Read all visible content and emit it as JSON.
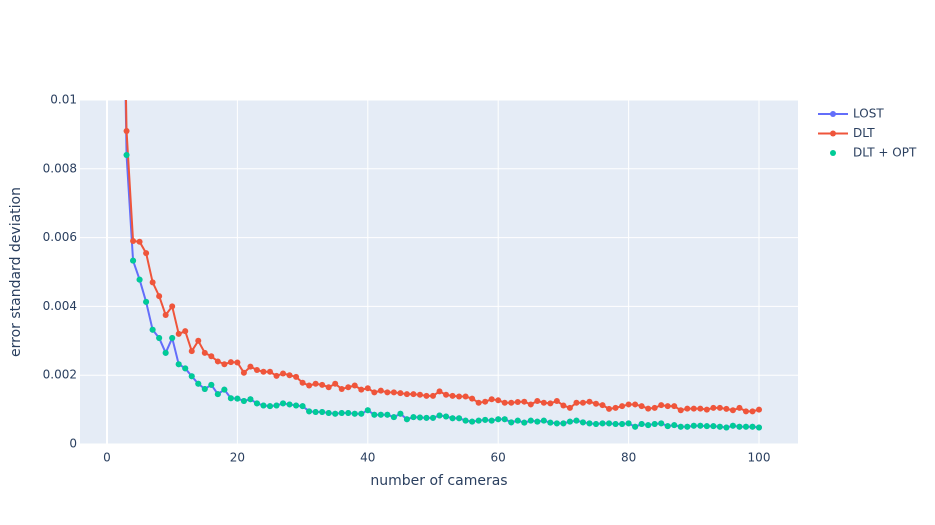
{
  "chart_data": {
    "type": "line",
    "x_label": "number of cameras",
    "y_label": "error standard deviation",
    "x": [
      2,
      3,
      4,
      5,
      6,
      7,
      8,
      9,
      10,
      11,
      12,
      13,
      14,
      15,
      16,
      17,
      18,
      19,
      20,
      21,
      22,
      23,
      24,
      25,
      26,
      27,
      28,
      29,
      30,
      31,
      32,
      33,
      34,
      35,
      36,
      37,
      38,
      39,
      40,
      41,
      42,
      43,
      44,
      45,
      46,
      47,
      48,
      49,
      50,
      51,
      52,
      53,
      54,
      55,
      56,
      57,
      58,
      59,
      60,
      61,
      62,
      63,
      64,
      65,
      66,
      67,
      68,
      69,
      70,
      71,
      72,
      73,
      74,
      75,
      76,
      77,
      78,
      79,
      80,
      81,
      82,
      83,
      84,
      85,
      86,
      87,
      88,
      89,
      90,
      91,
      92,
      93,
      94,
      95,
      96,
      97,
      98,
      99,
      100
    ],
    "series": [
      {
        "name": "LOST",
        "color": "#636efa",
        "mode": "lines+markers",
        "values": [
          0.02,
          0.0084,
          0.00533,
          0.00478,
          0.00413,
          0.00332,
          0.00308,
          0.00265,
          0.00308,
          0.00232,
          0.0022,
          0.00197,
          0.00175,
          0.0016,
          0.00172,
          0.00145,
          0.00158,
          0.00133,
          0.00132,
          0.00125,
          0.0013,
          0.00118,
          0.00112,
          0.0011,
          0.00112,
          0.00118,
          0.00115,
          0.00112,
          0.0011,
          0.00095,
          0.00093,
          0.00093,
          0.0009,
          0.00088,
          0.0009,
          0.0009,
          0.00088,
          0.00088,
          0.00098,
          0.00085,
          0.00085,
          0.00085,
          0.00078,
          0.00088,
          0.00072,
          0.00078,
          0.00077,
          0.00076,
          0.00076,
          0.00083,
          0.0008,
          0.00075,
          0.00075,
          0.00068,
          0.00065,
          0.00068,
          0.0007,
          0.00068,
          0.00072,
          0.00072,
          0.00063,
          0.00068,
          0.00062,
          0.00068,
          0.00065,
          0.00068,
          0.00062,
          0.0006,
          0.0006,
          0.00065,
          0.00068,
          0.00063,
          0.0006,
          0.00058,
          0.0006,
          0.0006,
          0.00058,
          0.00058,
          0.0006,
          0.0005,
          0.00058,
          0.00055,
          0.00058,
          0.0006,
          0.00052,
          0.00055,
          0.0005,
          0.0005,
          0.00053,
          0.00053,
          0.00052,
          0.00052,
          0.0005,
          0.00048,
          0.00053,
          0.0005,
          0.0005,
          0.0005,
          0.00048
        ]
      },
      {
        "name": "DLT",
        "color": "#ef553b",
        "mode": "lines+markers",
        "values": [
          0.02,
          0.0091,
          0.0059,
          0.00588,
          0.00555,
          0.0047,
          0.0043,
          0.00375,
          0.004,
          0.0032,
          0.00328,
          0.0027,
          0.003,
          0.00265,
          0.00255,
          0.0024,
          0.00232,
          0.00238,
          0.00237,
          0.00207,
          0.00225,
          0.00215,
          0.0021,
          0.0021,
          0.00198,
          0.00205,
          0.002,
          0.00195,
          0.00178,
          0.0017,
          0.00175,
          0.00172,
          0.00165,
          0.00175,
          0.0016,
          0.00165,
          0.0017,
          0.00158,
          0.00162,
          0.0015,
          0.00155,
          0.0015,
          0.0015,
          0.00148,
          0.00145,
          0.00145,
          0.00143,
          0.0014,
          0.0014,
          0.00153,
          0.00143,
          0.0014,
          0.00138,
          0.00138,
          0.00132,
          0.0012,
          0.00123,
          0.0013,
          0.00127,
          0.0012,
          0.0012,
          0.00122,
          0.00123,
          0.00115,
          0.00125,
          0.0012,
          0.00118,
          0.00125,
          0.00112,
          0.00105,
          0.0012,
          0.0012,
          0.00123,
          0.00117,
          0.00113,
          0.00102,
          0.00105,
          0.0011,
          0.00115,
          0.00115,
          0.0011,
          0.00103,
          0.00105,
          0.00113,
          0.0011,
          0.0011,
          0.00098,
          0.00103,
          0.00103,
          0.00103,
          0.001,
          0.00105,
          0.00105,
          0.00102,
          0.00098,
          0.00105,
          0.00095,
          0.00095,
          0.001
        ]
      },
      {
        "name": "DLT + OPT",
        "color": "#00cc96",
        "mode": "markers",
        "values": [
          0.018,
          0.0084,
          0.00533,
          0.00478,
          0.00413,
          0.00332,
          0.00308,
          0.00265,
          0.00308,
          0.00232,
          0.0022,
          0.00197,
          0.00175,
          0.0016,
          0.00172,
          0.00145,
          0.00158,
          0.00133,
          0.00132,
          0.00125,
          0.0013,
          0.00118,
          0.00112,
          0.0011,
          0.00112,
          0.00118,
          0.00115,
          0.00112,
          0.0011,
          0.00095,
          0.00093,
          0.00093,
          0.0009,
          0.00088,
          0.0009,
          0.0009,
          0.00088,
          0.00088,
          0.00098,
          0.00085,
          0.00085,
          0.00085,
          0.00078,
          0.00088,
          0.00072,
          0.00078,
          0.00077,
          0.00076,
          0.00076,
          0.00083,
          0.0008,
          0.00075,
          0.00075,
          0.00068,
          0.00065,
          0.00068,
          0.0007,
          0.00068,
          0.00072,
          0.00072,
          0.00063,
          0.00068,
          0.00062,
          0.00068,
          0.00065,
          0.00068,
          0.00062,
          0.0006,
          0.0006,
          0.00065,
          0.00068,
          0.00063,
          0.0006,
          0.00058,
          0.0006,
          0.0006,
          0.00058,
          0.00058,
          0.0006,
          0.0005,
          0.00058,
          0.00055,
          0.00058,
          0.0006,
          0.00052,
          0.00055,
          0.0005,
          0.0005,
          0.00053,
          0.00053,
          0.00052,
          0.00052,
          0.0005,
          0.00048,
          0.00053,
          0.0005,
          0.0005,
          0.0005,
          0.00048
        ]
      }
    ],
    "xlim": [
      -4.14,
      105.98
    ],
    "xticks": [
      0,
      20,
      40,
      60,
      80,
      100
    ],
    "ylim": [
      0,
      0.01
    ],
    "yticks": [
      0,
      0.002,
      0.004,
      0.006,
      0.008,
      0.01
    ],
    "grid": true,
    "legend": "right"
  }
}
